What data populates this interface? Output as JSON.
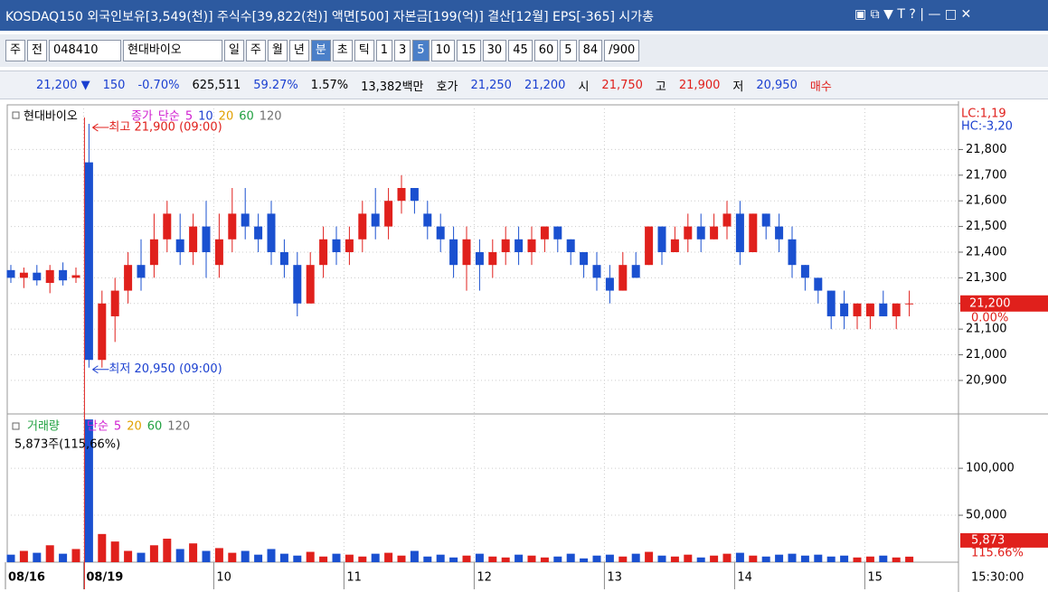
{
  "title_bar": {
    "text": "KOSDAQ150 외국인보유[3,549(천)] 주식수[39,822(천)] 액면[500] 자본금[199(억)] 결산[12월] EPS[-365] 시가총"
  },
  "toolbar": {
    "items": [
      "주",
      "전",
      "048410",
      "현대바이오",
      "일",
      "주",
      "월",
      "년",
      "분",
      "초",
      "틱",
      "1",
      "3",
      "5",
      "10",
      "15",
      "30",
      "45",
      "60",
      "5",
      "84",
      "/900"
    ],
    "selected": [
      8,
      13
    ]
  },
  "info_bar": {
    "items": [
      {
        "text": "21,200 ▼",
        "color": "#1a3fd0"
      },
      {
        "text": "150",
        "color": "#1a3fd0"
      },
      {
        "text": "-0.70%",
        "color": "#1a3fd0"
      },
      {
        "text": "625,511",
        "color": "#000"
      },
      {
        "text": "59.27%",
        "color": "#1a3fd0"
      },
      {
        "text": "1.57%",
        "color": "#000"
      },
      {
        "text": "13,382백만",
        "color": "#000"
      },
      {
        "text": "호가",
        "color": "#000"
      },
      {
        "text": "21,250",
        "color": "#1a3fd0"
      },
      {
        "text": "21,200",
        "color": "#1a3fd0"
      },
      {
        "text": "시",
        "color": "#000"
      },
      {
        "text": "21,750",
        "color": "#e0201c"
      },
      {
        "text": "고",
        "color": "#000"
      },
      {
        "text": "21,900",
        "color": "#e0201c"
      },
      {
        "text": "저",
        "color": "#000"
      },
      {
        "text": "20,950",
        "color": "#1a3fd0"
      },
      {
        "text": "매수",
        "color": "#e0201c"
      }
    ]
  },
  "chart_data": [
    {
      "type": "candlestick",
      "name": "현대바이오",
      "indicators": [
        {
          "text": "종가",
          "color": "#d020d0"
        },
        {
          "text": "단순",
          "color": "#d020d0"
        },
        {
          "text": "5",
          "color": "#d020d0"
        },
        {
          "text": "10",
          "color": "#2040d0"
        },
        {
          "text": "20",
          "color": "#e0a000"
        },
        {
          "text": "60",
          "color": "#20a040"
        },
        {
          "text": "120",
          "color": "#707070"
        }
      ],
      "high_label": "최고 21,900 (09:00)",
      "low_label": "최저 20,950 (09:00)",
      "right_labels": [
        "LC:1,19",
        "HC:-3,20"
      ],
      "last_label": "21,200",
      "change_label": "0.00%",
      "up_color": "#e0201c",
      "down_color": "#1a50d0",
      "categories": [
        "08/16",
        null,
        null,
        null,
        null,
        null,
        "08/19",
        null,
        null,
        null,
        null,
        null,
        null,
        null,
        null,
        null,
        "10",
        null,
        null,
        null,
        null,
        null,
        null,
        null,
        null,
        null,
        "11",
        null,
        null,
        null,
        null,
        null,
        null,
        null,
        null,
        null,
        "12",
        null,
        null,
        null,
        null,
        null,
        null,
        null,
        null,
        null,
        "13",
        null,
        null,
        null,
        null,
        null,
        null,
        null,
        null,
        null,
        "14",
        null,
        null,
        null,
        null,
        null,
        null,
        null,
        null,
        null,
        "15",
        null,
        null,
        null
      ],
      "open": [
        21330,
        21300,
        21320,
        21280,
        21330,
        21300,
        21750,
        20980,
        21150,
        21250,
        21350,
        21350,
        21450,
        21450,
        21400,
        21500,
        21350,
        21450,
        21550,
        21500,
        21550,
        21400,
        21350,
        21200,
        21350,
        21450,
        21400,
        21450,
        21550,
        21500,
        21600,
        21650,
        21550,
        21500,
        21450,
        21350,
        21400,
        21350,
        21400,
        21450,
        21400,
        21450,
        21500,
        21450,
        21400,
        21350,
        21300,
        21250,
        21350,
        21350,
        21500,
        21400,
        21450,
        21500,
        21450,
        21500,
        21550,
        21400,
        21550,
        21500,
        21450,
        21350,
        21300,
        21250,
        21200,
        21150,
        21150,
        21200,
        21150,
        21200
      ],
      "high": [
        21350,
        21340,
        21350,
        21350,
        21360,
        21340,
        21900,
        21250,
        21300,
        21400,
        21450,
        21550,
        21600,
        21550,
        21550,
        21600,
        21550,
        21650,
        21650,
        21550,
        21600,
        21450,
        21400,
        21400,
        21500,
        21500,
        21500,
        21600,
        21650,
        21650,
        21700,
        21650,
        21600,
        21550,
        21500,
        21500,
        21450,
        21450,
        21500,
        21500,
        21500,
        21500,
        21500,
        21450,
        21400,
        21400,
        21350,
        21400,
        21400,
        21500,
        21500,
        21500,
        21550,
        21550,
        21550,
        21600,
        21600,
        21550,
        21550,
        21550,
        21500,
        21350,
        21300,
        21250,
        21250,
        21200,
        21200,
        21250,
        21200,
        21250
      ],
      "low": [
        21280,
        21260,
        21270,
        21240,
        21270,
        21280,
        20950,
        20950,
        21050,
        21200,
        21250,
        21300,
        21400,
        21350,
        21350,
        21300,
        21300,
        21400,
        21450,
        21400,
        21350,
        21300,
        21150,
        21200,
        21300,
        21350,
        21350,
        21400,
        21450,
        21450,
        21550,
        21550,
        21450,
        21400,
        21300,
        21250,
        21250,
        21300,
        21350,
        21350,
        21350,
        21400,
        21400,
        21350,
        21300,
        21250,
        21200,
        21250,
        21300,
        21350,
        21350,
        21400,
        21400,
        21400,
        21450,
        21450,
        21350,
        21400,
        21450,
        21400,
        21300,
        21250,
        21200,
        21100,
        21100,
        21100,
        21100,
        21150,
        21100,
        21150
      ],
      "close": [
        21300,
        21320,
        21290,
        21330,
        21290,
        21310,
        20980,
        21200,
        21250,
        21350,
        21300,
        21450,
        21550,
        21400,
        21500,
        21400,
        21450,
        21550,
        21500,
        21450,
        21400,
        21350,
        21200,
        21350,
        21450,
        21400,
        21450,
        21550,
        21500,
        21600,
        21650,
        21600,
        21500,
        21450,
        21350,
        21450,
        21350,
        21400,
        21450,
        21400,
        21450,
        21500,
        21450,
        21400,
        21350,
        21300,
        21250,
        21350,
        21300,
        21500,
        21400,
        21450,
        21500,
        21450,
        21500,
        21550,
        21400,
        21550,
        21500,
        21450,
        21350,
        21300,
        21250,
        21150,
        21150,
        21200,
        21200,
        21150,
        21200,
        21200
      ],
      "ylim": [
        20780,
        21960
      ],
      "yticks": [
        {
          "value": 20900,
          "label": "20,900"
        },
        {
          "value": 21000,
          "label": "21,000"
        },
        {
          "value": 21100,
          "label": "21,100"
        },
        {
          "value": 21200,
          "label": "21,200"
        },
        {
          "value": 21300,
          "label": "21,300"
        },
        {
          "value": 21400,
          "label": "21,400"
        },
        {
          "value": 21500,
          "label": "21,500"
        },
        {
          "value": 21600,
          "label": "21,600"
        },
        {
          "value": 21700,
          "label": "21,700"
        },
        {
          "value": 21800,
          "label": "21,800"
        }
      ],
      "grid": true
    },
    {
      "type": "bar",
      "title": "거래량",
      "indicators": [
        {
          "text": "단순",
          "color": "#d020d0"
        },
        {
          "text": "5",
          "color": "#d020d0"
        },
        {
          "text": "20",
          "color": "#e0a000"
        },
        {
          "text": "60",
          "color": "#20a040"
        },
        {
          "text": "120",
          "color": "#707070"
        }
      ],
      "annotation": "5,873주(115,66%)",
      "last_label": "5,873",
      "ratio_label": "115.66%",
      "time_label": "15:30:00",
      "values": [
        8000,
        12000,
        10000,
        18000,
        9000,
        14000,
        152000,
        30000,
        22000,
        12000,
        10000,
        18000,
        25000,
        14000,
        20000,
        12000,
        15000,
        10000,
        12000,
        8000,
        14000,
        9000,
        7000,
        11000,
        6000,
        9000,
        8000,
        6000,
        9000,
        10000,
        7000,
        12000,
        6000,
        8000,
        5000,
        7000,
        9000,
        6000,
        5000,
        8000,
        7000,
        5000,
        6000,
        9000,
        4000,
        7000,
        8000,
        6000,
        9000,
        11000,
        7000,
        6000,
        8000,
        5000,
        7000,
        9000,
        10000,
        7000,
        6000,
        8000,
        9000,
        7000,
        8000,
        6000,
        7000,
        5000,
        6000,
        7000,
        5000,
        5873
      ],
      "ylim": [
        0,
        154000
      ],
      "yticks": [
        {
          "value": 50000,
          "label": "50,000"
        },
        {
          "value": 100000,
          "label": "100,000"
        }
      ],
      "grid": true
    }
  ]
}
